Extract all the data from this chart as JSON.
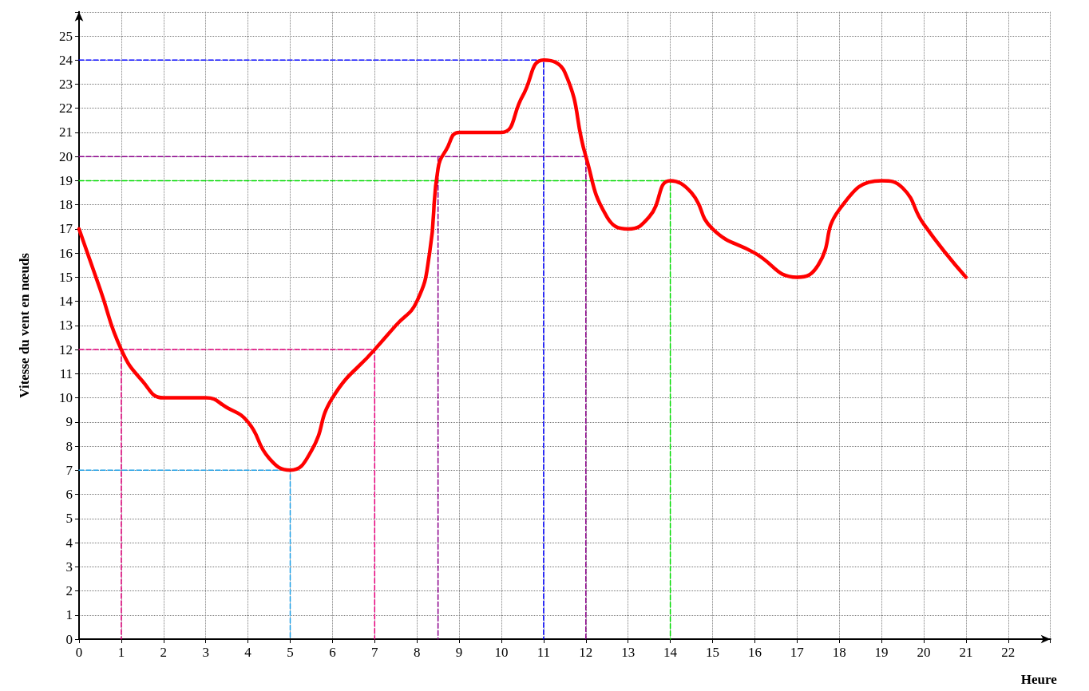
{
  "chart_data": {
    "type": "line",
    "xlabel": "Heure",
    "ylabel": "Vitesse du vent en nœuds",
    "xlim": [
      0,
      23
    ],
    "ylim": [
      0,
      26
    ],
    "xticks": [
      0,
      1,
      2,
      3,
      4,
      5,
      6,
      7,
      8,
      9,
      10,
      11,
      12,
      13,
      14,
      15,
      16,
      17,
      18,
      19,
      20,
      21,
      22,
      {
        "value": 23,
        "label": null
      }
    ],
    "yticks": [
      0,
      1,
      2,
      3,
      4,
      5,
      6,
      7,
      8,
      9,
      10,
      11,
      12,
      13,
      14,
      15,
      16,
      17,
      18,
      19,
      20,
      21,
      22,
      23,
      24,
      25,
      {
        "value": 26,
        "label": null
      }
    ],
    "grid": true,
    "marker": "none",
    "series": [
      {
        "color": "#ff0000",
        "line_style": "solid",
        "x": [
          0,
          0.5,
          1,
          1.5,
          2,
          2.5,
          3,
          3.5,
          4,
          4.5,
          5,
          5.5,
          6,
          7,
          7.5,
          8,
          8.3,
          8.5,
          8.7,
          9,
          9.5,
          10,
          10.5,
          11,
          11.5,
          12,
          12.5,
          13,
          13.5,
          14,
          14.5,
          15,
          16,
          17,
          17.5,
          18,
          19,
          19.5,
          20,
          21
        ],
        "values": [
          17,
          14.5,
          12,
          10.7,
          10,
          10,
          10,
          9.6,
          9,
          7.5,
          7,
          7.8,
          10,
          12,
          13,
          14,
          16,
          19.5,
          20.3,
          21,
          21,
          21,
          22.5,
          24,
          23.5,
          20,
          17.5,
          17,
          17.5,
          19,
          18.5,
          17,
          16,
          15,
          15.5,
          17.8,
          19,
          18.7,
          17.2,
          15
        ]
      },
      {
        "color": "#0000ff",
        "line_style": "dashed",
        "x": [
          0,
          11,
          11
        ],
        "values": [
          24,
          24,
          0
        ]
      },
      {
        "color": "#8b008b",
        "line_style": "dashed",
        "x": [
          0,
          12,
          12
        ],
        "values": [
          20,
          20,
          0
        ]
      },
      {
        "color": "#8b008b",
        "line_style": "dashed",
        "x": [
          8.5,
          8.5
        ],
        "values": [
          20,
          0
        ]
      },
      {
        "color": "#00dd00",
        "line_style": "dashed",
        "x": [
          0,
          14,
          14
        ],
        "values": [
          19,
          19,
          0
        ]
      },
      {
        "color": "#e6007e",
        "line_style": "dashed",
        "x": [
          0,
          7,
          7
        ],
        "values": [
          12,
          12,
          0
        ]
      },
      {
        "color": "#e6007e",
        "line_style": "dashed",
        "x": [
          1,
          1
        ],
        "values": [
          12,
          0
        ]
      },
      {
        "color": "#1e9fe6",
        "line_style": "dashed",
        "x": [
          0,
          5,
          5
        ],
        "values": [
          7,
          7,
          0
        ]
      }
    ]
  }
}
